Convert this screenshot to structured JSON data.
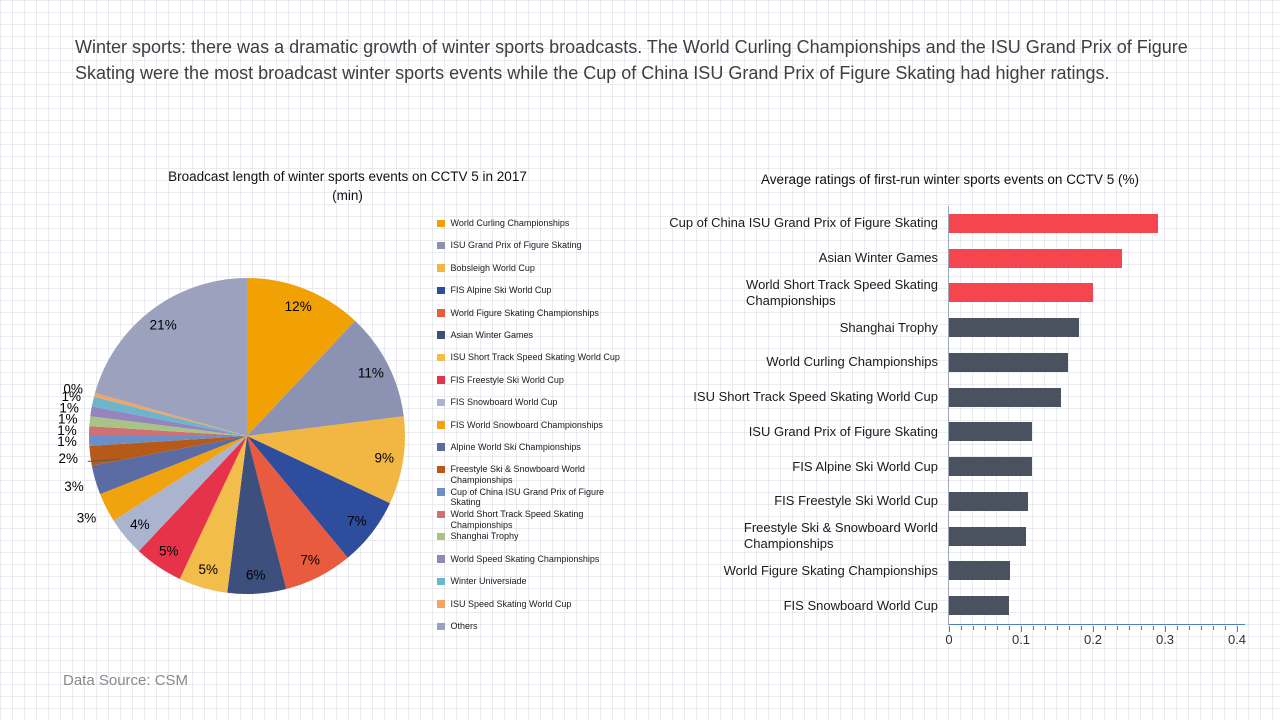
{
  "headline": "Winter sports: there was a dramatic growth of winter sports broadcasts. The World Curling Championships and the ISU Grand Prix of Figure Skating were the most broadcast winter sports events while the Cup of China ISU Grand Prix of Figure Skating had higher ratings.",
  "data_source": "Data Source: CSM",
  "colors": {
    "bar_highlight": "#F5464F",
    "bar_default": "#4A5260",
    "axis": "#4E80BD",
    "headline_text": "#3F3F3F",
    "source_text": "#8A8A8A"
  },
  "chart_data": [
    {
      "type": "pie",
      "title": "Broadcast length of winter sports events on CCTV 5 in 2017\n(min)",
      "legend_position": "right",
      "slices": [
        {
          "label": "World Curling Championships",
          "value": 12,
          "display": "12%",
          "color": "#F2A104"
        },
        {
          "label": "ISU Grand Prix of Figure Skating",
          "value": 11,
          "display": "11%",
          "color": "#8B92B2"
        },
        {
          "label": "Bobsleigh World Cup",
          "value": 9,
          "display": "9%",
          "color": "#F2B743"
        },
        {
          "label": "FIS Alpine Ski World Cup",
          "value": 7,
          "display": "7%",
          "color": "#2E4D9D"
        },
        {
          "label": "World Figure Skating Championships",
          "value": 7,
          "display": "7%",
          "color": "#E85B3F"
        },
        {
          "label": "Asian Winter Games",
          "value": 6,
          "display": "6%",
          "color": "#3D4F7D"
        },
        {
          "label": "ISU Short Track Speed Skating World Cup",
          "value": 5,
          "display": "5%",
          "color": "#F2BD4B"
        },
        {
          "label": "FIS Freestyle Ski World Cup",
          "value": 5,
          "display": "5%",
          "color": "#E63349"
        },
        {
          "label": "FIS Snowboard World Cup",
          "value": 4,
          "display": "4%",
          "color": "#ABB4CF"
        },
        {
          "label": "FIS World Snowboard Championships",
          "value": 3,
          "display": "3%",
          "color": "#F0A30E"
        },
        {
          "label": "Alpine World Ski Championships",
          "value": 3,
          "display": "3%",
          "color": "#5A6CA3"
        },
        {
          "label": "Freestyle Ski & Snowboard World\nChampionships",
          "value": 2,
          "display": "2%",
          "color": "#B55A18",
          "leader": true
        },
        {
          "label": "Cup of China ISU Grand Prix of Figure\nSkating",
          "value": 1,
          "display": "1%",
          "color": "#6C8FC8"
        },
        {
          "label": "World Short Track Speed Skating\nChampionships",
          "value": 1,
          "display": "1%",
          "color": "#CF7174"
        },
        {
          "label": "Shanghai Trophy",
          "value": 1,
          "display": "1%",
          "color": "#A8C484"
        },
        {
          "label": "World Speed Skating Championships",
          "value": 1,
          "display": "1%",
          "color": "#9585BE"
        },
        {
          "label": "Winter Universiade",
          "value": 1,
          "display": "1%",
          "color": "#6CB5CC"
        },
        {
          "label": "ISU Speed Skating World Cup",
          "value": 0.4,
          "display": "0%",
          "color": "#F2A666"
        },
        {
          "label": "Others",
          "value": 20.6,
          "display": "21%",
          "color": "#9CA1BE"
        }
      ]
    },
    {
      "type": "bar",
      "orientation": "horizontal",
      "title": "Average ratings of first-run winter sports events on CCTV 5 (%)",
      "categories": [
        "Cup of China ISU Grand Prix of Figure Skating",
        "Asian Winter Games",
        "World Short Track Speed Skating\nChampionships",
        "Shanghai Trophy",
        "World Curling Championships",
        "ISU Short Track Speed Skating World Cup",
        "ISU Grand Prix of Figure Skating",
        "FIS Alpine Ski World Cup",
        "FIS Freestyle Ski World Cup",
        "Freestyle Ski & Snowboard World\nChampionships",
        "World Figure Skating Championships",
        "FIS Snowboard World Cup"
      ],
      "values": [
        0.29,
        0.24,
        0.2,
        0.18,
        0.165,
        0.155,
        0.115,
        0.115,
        0.11,
        0.107,
        0.085,
        0.084
      ],
      "bar_colors": [
        "#F5464F",
        "#F5464F",
        "#F5464F",
        "#4A5260",
        "#4A5260",
        "#4A5260",
        "#4A5260",
        "#4A5260",
        "#4A5260",
        "#4A5260",
        "#4A5260",
        "#4A5260"
      ],
      "xlabel": "",
      "ylabel": "",
      "xlim": [
        0,
        0.4
      ],
      "xticks": [
        0,
        0.1,
        0.2,
        0.3,
        0.4
      ],
      "xtick_labels": [
        "0",
        "0.1",
        "0.2",
        "0.3",
        "0.4"
      ],
      "grid": false,
      "legend_position": "none"
    }
  ]
}
